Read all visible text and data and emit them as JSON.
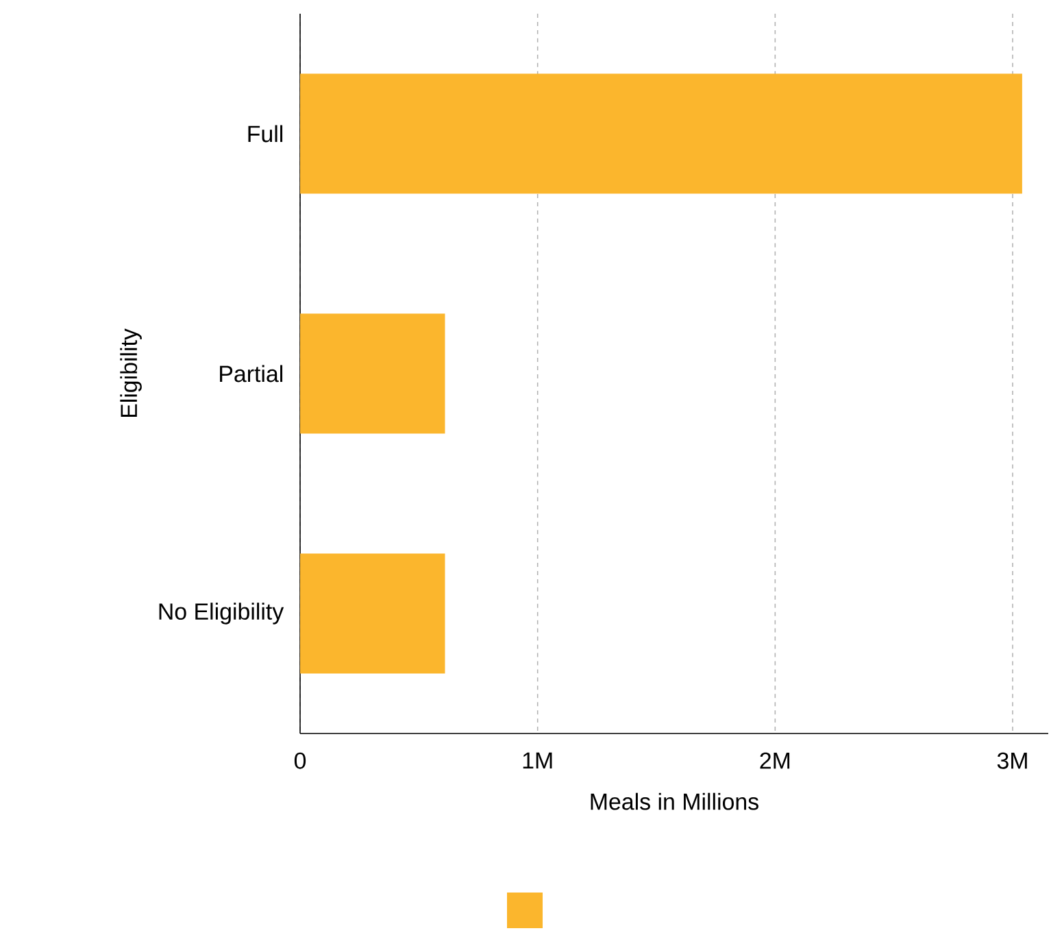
{
  "chart_data": {
    "type": "bar",
    "orientation": "horizontal",
    "xlabel": "Meals in Millions",
    "ylabel": "Eligibility",
    "categories": [
      "Full",
      "Partial",
      "No Eligibility"
    ],
    "series": [
      {
        "color": "#fbb62d",
        "values": [
          3.04,
          0.61,
          0.61
        ]
      }
    ],
    "xlim": [
      0,
      3.15
    ],
    "xticks": [
      0,
      {
        "value": 1,
        "label": "1M"
      },
      {
        "value": 2,
        "label": "2M"
      },
      {
        "value": 3,
        "label": "3M"
      }
    ],
    "grid": "x"
  }
}
